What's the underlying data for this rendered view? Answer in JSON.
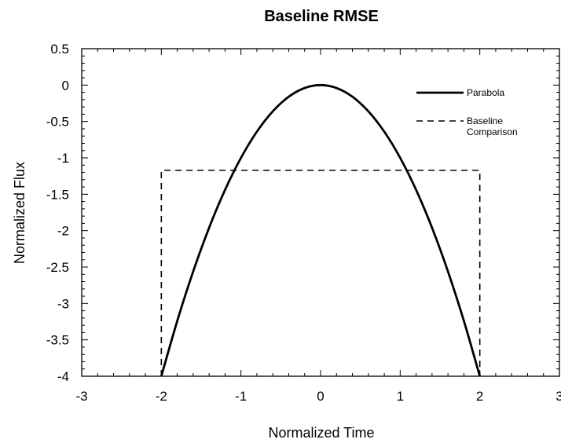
{
  "chart_data": {
    "type": "line",
    "title": "Baseline RMSE",
    "xlabel": "Normalized Time",
    "ylabel": "Normalized Flux",
    "xlim": [
      -3,
      3
    ],
    "ylim": [
      -4,
      0.5
    ],
    "xticks": [
      "-3",
      "-2",
      "-1",
      "0",
      "1",
      "2",
      "3"
    ],
    "yticks": [
      "0.5",
      "0",
      "-0.5",
      "-1",
      "-1.5",
      "-2",
      "-2.5",
      "-3",
      "-3.5",
      "-4"
    ],
    "grid": false,
    "legend_position": "top-right",
    "series": [
      {
        "name": "Parabola",
        "style": "solid",
        "color": "#000000",
        "x": [
          -2,
          -1.8,
          -1.6,
          -1.4,
          -1.2,
          -1.0,
          -0.8,
          -0.6,
          -0.4,
          -0.2,
          0,
          0.2,
          0.4,
          0.6,
          0.8,
          1.0,
          1.2,
          1.4,
          1.6,
          1.8,
          2
        ],
        "y": [
          -4,
          -3.24,
          -2.56,
          -1.96,
          -1.44,
          -1.0,
          -0.64,
          -0.36,
          -0.16,
          -0.04,
          0,
          -0.04,
          -0.16,
          -0.36,
          -0.64,
          -1.0,
          -1.44,
          -1.96,
          -2.56,
          -3.24,
          -4
        ]
      },
      {
        "name": "Baseline Comparison",
        "style": "dashed",
        "color": "#000000",
        "x": [
          -2,
          -2,
          2,
          2
        ],
        "y": [
          -4,
          -1.17,
          -1.17,
          -4
        ]
      }
    ]
  }
}
